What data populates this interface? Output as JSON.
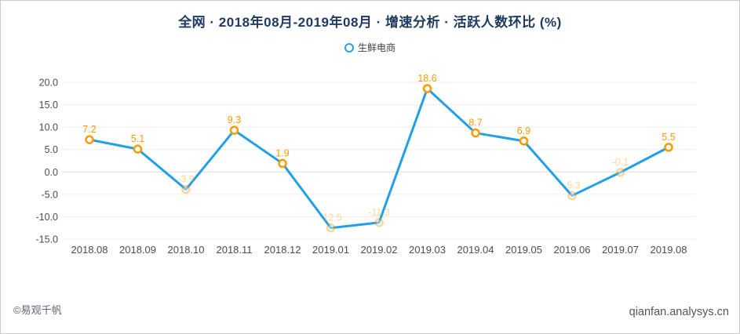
{
  "page": {
    "footer_left": "©易观千帆",
    "footer_right": "qianfan.analysys.cn"
  },
  "chart_data": {
    "type": "line",
    "title": "全网 · 2018年08月-2019年08月 · 增速分析 · 活跃人数环比  (%)",
    "legend": [
      {
        "name": "生鲜电商"
      }
    ],
    "legend_position": "top",
    "categories": [
      "2018.08",
      "2018.09",
      "2018.10",
      "2018.11",
      "2018.12",
      "2019.01",
      "2019.02",
      "2019.03",
      "2019.04",
      "2019.05",
      "2019.06",
      "2019.07",
      "2019.08"
    ],
    "series": [
      {
        "name": "生鲜电商",
        "values": [
          7.2,
          5.1,
          -3.9,
          9.3,
          1.9,
          -12.5,
          -11.3,
          18.6,
          8.7,
          6.9,
          -5.3,
          -0.1,
          5.5
        ]
      }
    ],
    "ytick_labels": [
      "20.0",
      "15.0",
      "10.0",
      "5.0",
      "0.0",
      "-5.0",
      "-10.0",
      "-15.0"
    ],
    "ylim": [
      -15,
      20
    ],
    "grid": true,
    "colors": {
      "line": "#22a0e5",
      "marker": "#ff9900",
      "data_label": "#ff9900",
      "title": "#1f3a60",
      "legend_marker": "#29a3e3",
      "axis_text": "#4c4c4c",
      "grid_line": "#ededed",
      "zero_line": "#dcdcdc"
    }
  }
}
